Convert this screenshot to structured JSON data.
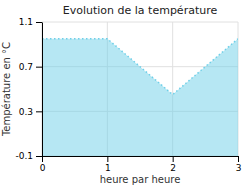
{
  "chart_data": {
    "type": "area",
    "title": "Evolution de la température",
    "xlabel": "heure par heure",
    "ylabel": "Température en °C",
    "x": [
      0,
      1,
      2,
      3
    ],
    "values": [
      0.95,
      0.95,
      0.45,
      0.95
    ],
    "xlim": [
      0,
      3
    ],
    "ylim": [
      -0.1,
      1.1
    ],
    "xticks": [
      0,
      1,
      2,
      3
    ],
    "yticks": [
      -0.1,
      0.3,
      0.7,
      1.1
    ],
    "grid": true,
    "color": "#6ecfe8",
    "line_style": "dotted"
  }
}
